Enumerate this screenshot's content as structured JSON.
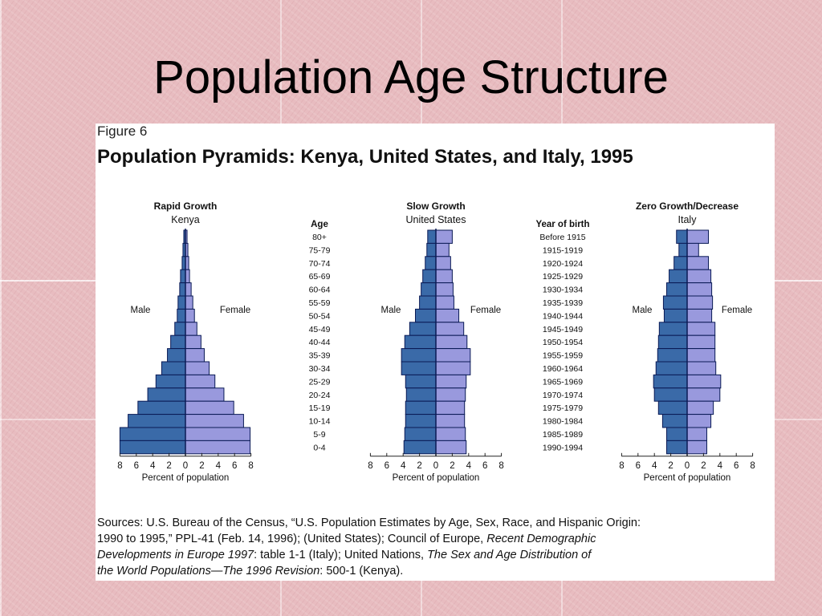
{
  "slide": {
    "title": "Population Age Structure"
  },
  "figure": {
    "label": "Figure 6",
    "title": "Population Pyramids: Kenya, United States, and Italy, 1995"
  },
  "colors": {
    "male": "#3a6aa8",
    "female": "#9999dd",
    "outline": "#0a1a55",
    "axis": "#222222"
  },
  "chart_data": {
    "type": "population-pyramid",
    "age_label": "Age",
    "year_label": "Year of birth",
    "age_groups": [
      "80+",
      "75-79",
      "70-74",
      "65-69",
      "60-64",
      "55-59",
      "50-54",
      "45-49",
      "40-44",
      "35-39",
      "30-34",
      "25-29",
      "20-24",
      "15-19",
      "10-14",
      "5-9",
      "0-4"
    ],
    "birth_years": [
      "Before 1915",
      "1915-1919",
      "1920-1924",
      "1925-1929",
      "1930-1934",
      "1935-1939",
      "1940-1944",
      "1945-1949",
      "1950-1954",
      "1955-1959",
      "1960-1964",
      "1965-1969",
      "1970-1974",
      "1975-1979",
      "1980-1984",
      "1985-1989",
      "1990-1994"
    ],
    "x_ticks": [
      "8",
      "6",
      "4",
      "2",
      "0",
      "2",
      "4",
      "6",
      "8"
    ],
    "x_label": "Percent of population",
    "male_label": "Male",
    "female_label": "Female",
    "xlim": [
      -8,
      8
    ],
    "pyramids": [
      {
        "heading": "Rapid Growth",
        "country": "Kenya",
        "male": [
          0.2,
          0.3,
          0.4,
          0.6,
          0.7,
          0.9,
          1.0,
          1.3,
          1.8,
          2.2,
          2.9,
          3.6,
          4.6,
          5.8,
          7.0,
          8.0,
          8.0
        ],
        "female": [
          0.2,
          0.3,
          0.4,
          0.5,
          0.7,
          0.9,
          1.1,
          1.4,
          1.9,
          2.3,
          2.9,
          3.6,
          4.7,
          5.9,
          7.1,
          7.9,
          7.9
        ]
      },
      {
        "heading": "Slow Growth",
        "country": "United States",
        "male": [
          1.0,
          1.1,
          1.3,
          1.6,
          1.8,
          2.0,
          2.5,
          3.2,
          3.8,
          4.2,
          4.2,
          3.7,
          3.6,
          3.7,
          3.7,
          3.8,
          3.9
        ],
        "female": [
          2.0,
          1.6,
          1.8,
          2.0,
          2.1,
          2.2,
          2.8,
          3.4,
          3.8,
          4.2,
          4.2,
          3.7,
          3.6,
          3.5,
          3.5,
          3.6,
          3.7
        ]
      },
      {
        "heading": "Zero Growth/Decrease",
        "country": "Italy",
        "male": [
          1.3,
          1.0,
          1.6,
          2.2,
          2.5,
          2.9,
          2.8,
          3.4,
          3.5,
          3.6,
          3.8,
          4.1,
          4.0,
          3.5,
          3.0,
          2.5,
          2.5
        ],
        "female": [
          2.6,
          1.4,
          2.6,
          2.9,
          3.0,
          3.1,
          3.0,
          3.4,
          3.4,
          3.4,
          3.5,
          4.1,
          4.0,
          3.2,
          2.9,
          2.4,
          2.4
        ]
      }
    ]
  },
  "sources": {
    "line1": "Sources: U.S. Bureau of the Census, “U.S. Population Estimates by Age, Sex, Race, and Hispanic Origin:",
    "line2_a": "1990 to 1995,” PPL-41 (Feb. 14, 1996); (United States); Council of Europe, ",
    "line2_em": "Recent Demographic",
    "line3_em": "Developments in Europe 1997",
    "line3_b": ": table 1-1 (Italy); United Nations, ",
    "line3_em2": "The Sex and Age Distribution of",
    "line4_em": "the World Populations—The 1996 Revision",
    "line4_b": ": 500-1 (Kenya)."
  }
}
